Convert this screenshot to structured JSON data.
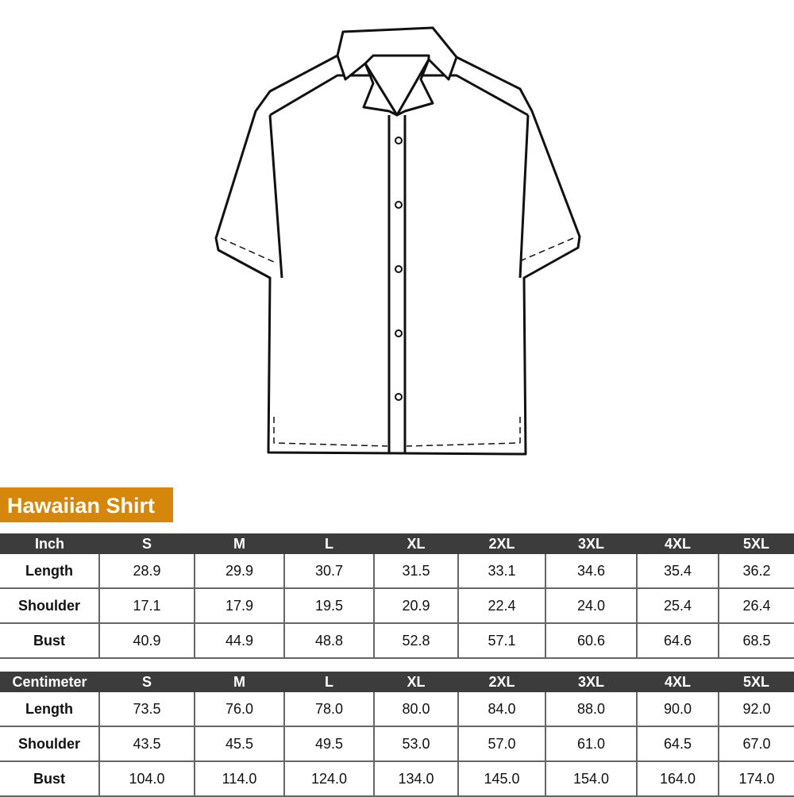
{
  "title": "Hawaiian Shirt",
  "accent_color": "#d4870a",
  "header_color": "#3c3c3c",
  "sizes": [
    "S",
    "M",
    "L",
    "XL",
    "2XL",
    "3XL",
    "4XL",
    "5XL"
  ],
  "inch": {
    "unit": "Inch",
    "rows": [
      {
        "label": "Length",
        "values": [
          "28.9",
          "29.9",
          "30.7",
          "31.5",
          "33.1",
          "34.6",
          "35.4",
          "36.2"
        ]
      },
      {
        "label": "Shoulder",
        "values": [
          "17.1",
          "17.9",
          "19.5",
          "20.9",
          "22.4",
          "24.0",
          "25.4",
          "26.4"
        ]
      },
      {
        "label": "Bust",
        "values": [
          "40.9",
          "44.9",
          "48.8",
          "52.8",
          "57.1",
          "60.6",
          "64.6",
          "68.5"
        ]
      }
    ]
  },
  "cm": {
    "unit": "Centimeter",
    "rows": [
      {
        "label": "Length",
        "values": [
          "73.5",
          "76.0",
          "78.0",
          "80.0",
          "84.0",
          "88.0",
          "90.0",
          "92.0"
        ]
      },
      {
        "label": "Shoulder",
        "values": [
          "43.5",
          "45.5",
          "49.5",
          "53.0",
          "57.0",
          "61.0",
          "64.5",
          "67.0"
        ]
      },
      {
        "label": "Bust",
        "values": [
          "104.0",
          "114.0",
          "124.0",
          "134.0",
          "145.0",
          "154.0",
          "164.0",
          "174.0"
        ]
      }
    ]
  }
}
